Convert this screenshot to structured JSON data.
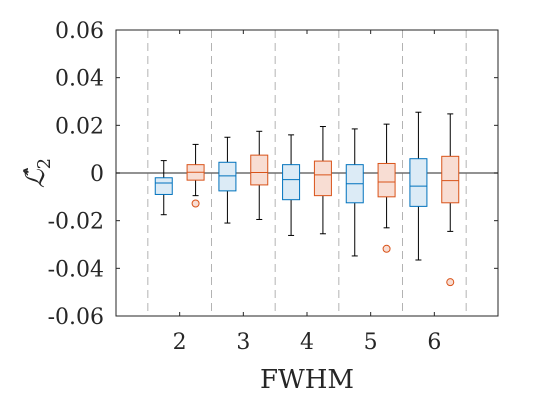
{
  "chart_data": {
    "type": "box",
    "xlabel": "FWHM",
    "ylabel": "ℒ̂",
    "ylabel_subscript": "2",
    "categories": [
      "2",
      "3",
      "4",
      "5",
      "6"
    ],
    "ylim": [
      -0.06,
      0.06
    ],
    "yticks": [
      -0.06,
      -0.04,
      -0.02,
      0,
      0.02,
      0.04,
      0.06
    ],
    "ytick_labels": [
      "-0.06",
      "-0.04",
      "-0.02",
      "0",
      "0.02",
      "0.04",
      "0.06"
    ],
    "xlim": [
      1,
      7
    ],
    "grid": false,
    "reference_line": 0,
    "group_separators": [
      1.5,
      2.5,
      3.5,
      4.5,
      5.5,
      6.5
    ],
    "series": [
      {
        "color": "#0072BD",
        "fill": "#DCEBF6",
        "boxes": [
          {
            "category": "2",
            "whisker_low": -0.0175,
            "q1": -0.009,
            "median": -0.0042,
            "q3": -0.002,
            "whisker_high": 0.0052,
            "outliers": []
          },
          {
            "category": "3",
            "whisker_low": -0.021,
            "q1": -0.0075,
            "median": -0.0012,
            "q3": 0.0045,
            "whisker_high": 0.015,
            "outliers": []
          },
          {
            "category": "4",
            "whisker_low": -0.0262,
            "q1": -0.0112,
            "median": -0.0028,
            "q3": 0.0035,
            "whisker_high": 0.016,
            "outliers": []
          },
          {
            "category": "5",
            "whisker_low": -0.0348,
            "q1": -0.0125,
            "median": -0.0045,
            "q3": 0.0035,
            "whisker_high": 0.0185,
            "outliers": []
          },
          {
            "category": "6",
            "whisker_low": -0.0365,
            "q1": -0.014,
            "median": -0.0055,
            "q3": 0.006,
            "whisker_high": 0.0255,
            "outliers": []
          }
        ]
      },
      {
        "color": "#D95319",
        "fill": "#F8DDD3",
        "boxes": [
          {
            "category": "2",
            "whisker_low": -0.0095,
            "q1": -0.003,
            "median": 0.0003,
            "q3": 0.0035,
            "whisker_high": 0.012,
            "outliers": [
              -0.0128
            ]
          },
          {
            "category": "3",
            "whisker_low": -0.0195,
            "q1": -0.005,
            "median": 0.0002,
            "q3": 0.0075,
            "whisker_high": 0.0175,
            "outliers": []
          },
          {
            "category": "4",
            "whisker_low": -0.0255,
            "q1": -0.0095,
            "median": -0.0008,
            "q3": 0.005,
            "whisker_high": 0.0195,
            "outliers": []
          },
          {
            "category": "5",
            "whisker_low": -0.023,
            "q1": -0.01,
            "median": -0.0038,
            "q3": 0.004,
            "whisker_high": 0.0205,
            "outliers": [
              -0.0318
            ]
          },
          {
            "category": "6",
            "whisker_low": -0.0245,
            "q1": -0.0125,
            "median": -0.0032,
            "q3": 0.007,
            "whisker_high": 0.0248,
            "outliers": [
              -0.0458
            ]
          }
        ]
      }
    ]
  }
}
